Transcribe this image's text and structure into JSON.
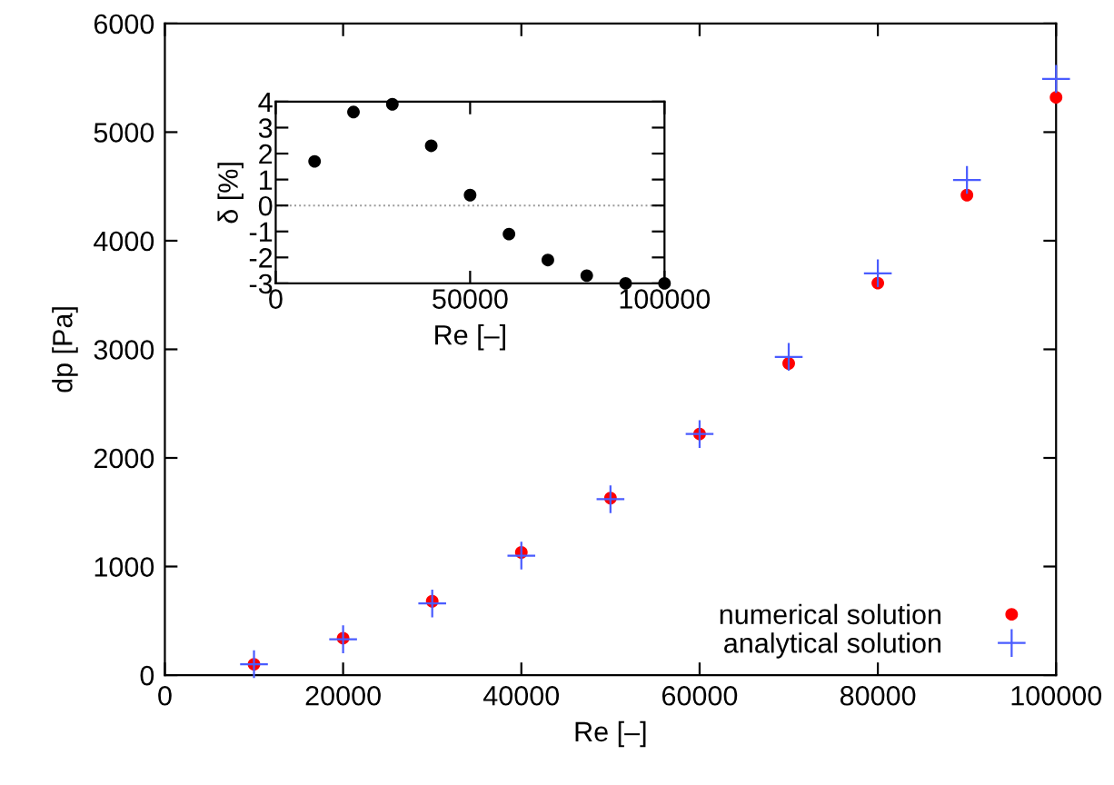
{
  "chart_data": [
    {
      "type": "scatter",
      "xlabel": "Re [–]",
      "ylabel": "dp [Pa]",
      "x": [
        10000,
        20000,
        30000,
        40000,
        50000,
        60000,
        70000,
        80000,
        90000,
        100000
      ],
      "series": [
        {
          "name": "numerical solution",
          "color": "#ff0000",
          "marker": "circle",
          "values": [
            100,
            340,
            680,
            1130,
            1630,
            2220,
            2870,
            3610,
            4420,
            5320
          ]
        },
        {
          "name": "analytical solution",
          "color": "#4a5cff",
          "marker": "cross",
          "values": [
            100,
            330,
            660,
            1100,
            1620,
            2220,
            2930,
            3700,
            4560,
            5490
          ]
        }
      ],
      "xlim": [
        0,
        100000
      ],
      "ylim": [
        0,
        6000
      ],
      "xticks": [
        0,
        20000,
        40000,
        60000,
        80000,
        100000
      ],
      "yticks": [
        0,
        1000,
        2000,
        3000,
        4000,
        5000,
        6000
      ],
      "grid": false,
      "legend": "bottom right"
    },
    {
      "type": "scatter",
      "xlabel": "Re [–]",
      "ylabel": "δ [%]",
      "x": [
        10000,
        20000,
        30000,
        40000,
        50000,
        60000,
        70000,
        80000,
        90000,
        100000
      ],
      "series": [
        {
          "color": "#000000",
          "marker": "circle",
          "values": [
            1.7,
            3.6,
            3.9,
            2.3,
            0.4,
            -1.1,
            -2.1,
            -2.7,
            -3.0,
            -3.0
          ]
        }
      ],
      "xlim": [
        0,
        100000
      ],
      "ylim": [
        -3,
        4
      ],
      "xticks": [
        0,
        50000,
        100000
      ],
      "yticks": [
        -3,
        -2,
        -1,
        0,
        1,
        2,
        3,
        4
      ],
      "grid": false,
      "ref_lines": [
        {
          "axis": "y",
          "value": 0,
          "color": "#999999",
          "line_style": "dotted"
        }
      ]
    }
  ]
}
